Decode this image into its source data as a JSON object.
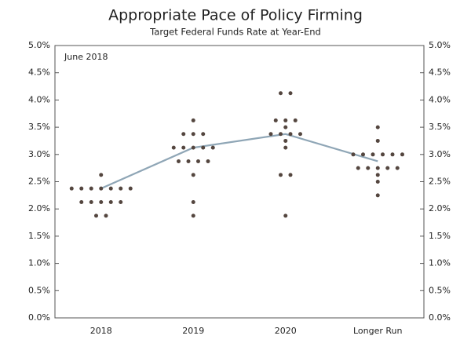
{
  "chart_data": {
    "type": "dot",
    "title": "Appropriate Pace of Policy Firming",
    "subtitle": "Target Federal Funds Rate at Year-End",
    "annotation": "June 2018",
    "categories": [
      "2018",
      "2019",
      "2020",
      "Longer Run"
    ],
    "dots": [
      [
        2.625,
        2.375,
        2.375,
        2.375,
        2.375,
        2.375,
        2.375,
        2.375,
        2.125,
        2.125,
        2.125,
        2.125,
        2.125,
        1.875,
        1.875
      ],
      [
        3.625,
        3.375,
        3.375,
        3.375,
        3.125,
        3.125,
        3.125,
        3.125,
        3.125,
        2.875,
        2.875,
        2.875,
        2.875,
        2.625,
        2.125,
        1.875
      ],
      [
        4.125,
        4.125,
        3.625,
        3.625,
        3.625,
        3.5,
        3.375,
        3.375,
        3.375,
        3.375,
        3.25,
        3.125,
        2.625,
        2.625,
        1.875
      ],
      [
        3.5,
        3.25,
        3.0,
        3.0,
        3.0,
        3.0,
        3.0,
        3.0,
        2.75,
        2.75,
        2.75,
        2.75,
        2.75,
        2.625,
        2.5,
        2.25
      ]
    ],
    "dot_color": "#54463f",
    "median": {
      "values": [
        2.375,
        3.125,
        3.375,
        2.875
      ],
      "color": "#8fa6b6"
    },
    "ylim": [
      0,
      5
    ],
    "yticks": [
      {
        "value": 0,
        "label": "0.0%"
      },
      {
        "value": 0.5,
        "label": "0.5%"
      },
      {
        "value": 1,
        "label": "1.0%"
      },
      {
        "value": 1.5,
        "label": "1.5%"
      },
      {
        "value": 2,
        "label": "2.0%"
      },
      {
        "value": 2.5,
        "label": "2.5%"
      },
      {
        "value": 3,
        "label": "3.0%"
      },
      {
        "value": 3.5,
        "label": "3.5%"
      },
      {
        "value": 4,
        "label": "4.0%"
      },
      {
        "value": 4.5,
        "label": "4.5%"
      },
      {
        "value": 5,
        "label": "5.0%"
      }
    ]
  }
}
